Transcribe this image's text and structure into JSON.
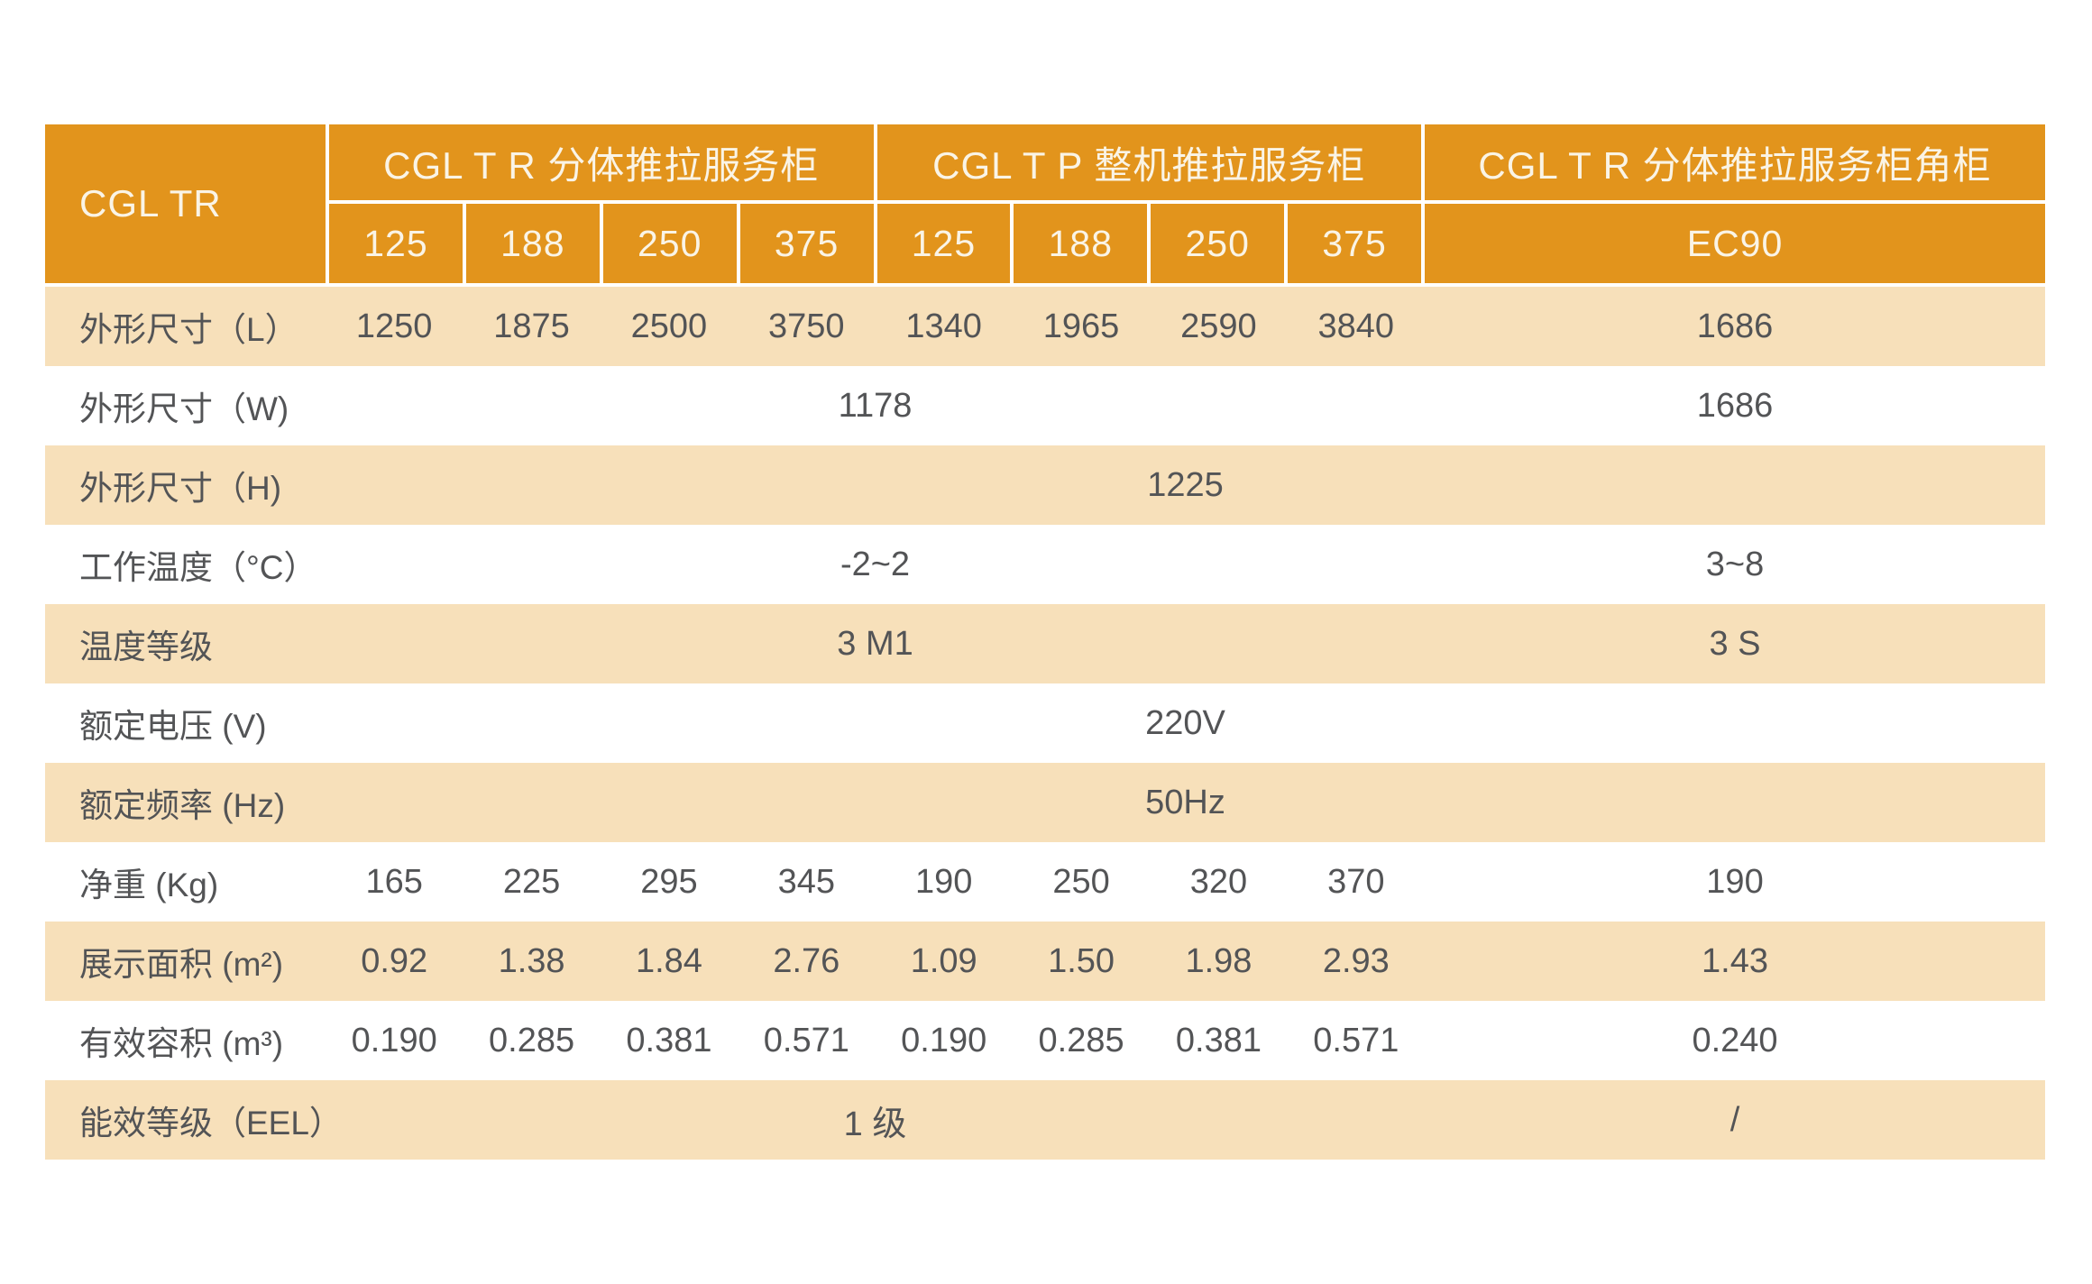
{
  "table": {
    "corner_label": "CGL TR",
    "header_groups": [
      {
        "label": "CGL T R 分体推拉服务柜"
      },
      {
        "label": "CGL T P 整机推拉服务柜"
      },
      {
        "label": "CGL T R 分体推拉服务柜角柜"
      }
    ],
    "sub_headers": [
      "125",
      "188",
      "250",
      "375",
      "125",
      "188",
      "250",
      "375",
      "EC90"
    ],
    "rows": [
      {
        "label": "外形尺寸（L）",
        "values": [
          "1250",
          "1875",
          "2500",
          "3750",
          "1340",
          "1965",
          "2590",
          "3840"
        ],
        "ec90": "1686"
      },
      {
        "label": "外形尺寸（W)",
        "merged8": "1178",
        "ec90": "1686"
      },
      {
        "label": "外形尺寸（H)",
        "merged9": "1225"
      },
      {
        "label": "工作温度（°C）",
        "merged8": "-2~2",
        "ec90": "3~8"
      },
      {
        "label": "温度等级",
        "merged8": "3 M1",
        "ec90": "3 S"
      },
      {
        "label": "额定电压 (V)",
        "merged9": "220V"
      },
      {
        "label": "额定频率 (Hz)",
        "merged9": "50Hz"
      },
      {
        "label": "净重 (Kg)",
        "values": [
          "165",
          "225",
          "295",
          "345",
          "190",
          "250",
          "320",
          "370"
        ],
        "ec90": "190"
      },
      {
        "label": "展示面积 (m²)",
        "values": [
          "0.92",
          "1.38",
          "1.84",
          "2.76",
          "1.09",
          "1.50",
          "1.98",
          "2.93"
        ],
        "ec90": "1.43"
      },
      {
        "label": "有效容积 (m³)",
        "values": [
          "0.190",
          "0.285",
          "0.381",
          "0.571",
          "0.190",
          "0.285",
          "0.381",
          "0.571"
        ],
        "ec90": "0.240"
      },
      {
        "label": "能效等级（EEL）",
        "merged8": "1 级",
        "ec90": "/"
      }
    ],
    "colors": {
      "header_bg": "#E2941C",
      "header_text": "#FAF4E6",
      "band_bg": "#F7E0BA",
      "body_text": "#535456"
    }
  }
}
